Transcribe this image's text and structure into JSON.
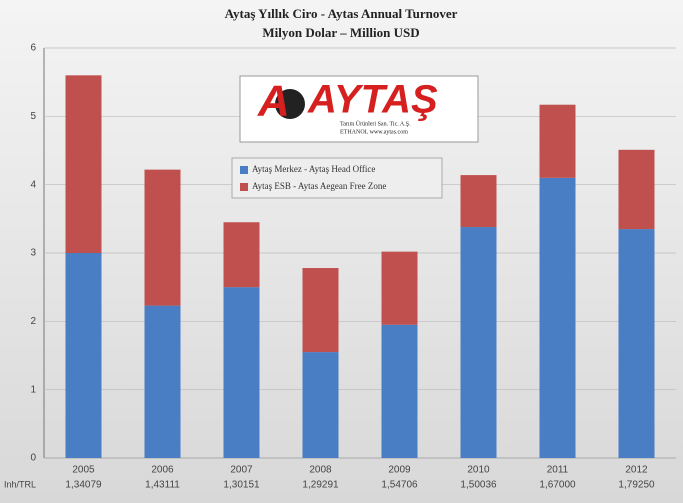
{
  "chart_data": {
    "type": "stacked-bar",
    "title": "Aytaş Yıllık Ciro - Aytas Annual Turnover",
    "subtitle": "Milyon Dolar – Million USD",
    "categories": [
      "2005",
      "2006",
      "2007",
      "2008",
      "2009",
      "2010",
      "2011",
      "2012"
    ],
    "rate_label": "Inh/TRL",
    "rates": [
      "1,34079",
      "1,43111",
      "1,30151",
      "1,29291",
      "1,54706",
      "1,50036",
      "1,67000",
      "1,79250"
    ],
    "series": [
      {
        "name": "Aytaş Merkez - Aytaş Head Office",
        "color": "#4a7ec4",
        "values": [
          3.0,
          2.23,
          2.5,
          1.55,
          1.95,
          3.38,
          4.1,
          3.35
        ]
      },
      {
        "name": "Aytaş ESB - Aytas Aegean Free Zone",
        "color": "#c0504d",
        "values": [
          2.6,
          1.99,
          0.95,
          1.23,
          1.07,
          0.76,
          1.07,
          1.16
        ]
      }
    ],
    "ylim": [
      0,
      6
    ],
    "yticks": [
      0,
      1,
      2,
      3,
      4,
      5,
      6
    ],
    "grid": true,
    "logo": {
      "name": "AYTAŞ",
      "tagline": "Tarım Ürünleri San. Tic. A.Ş.",
      "line": "ETHANOL www.aytas.com"
    }
  }
}
